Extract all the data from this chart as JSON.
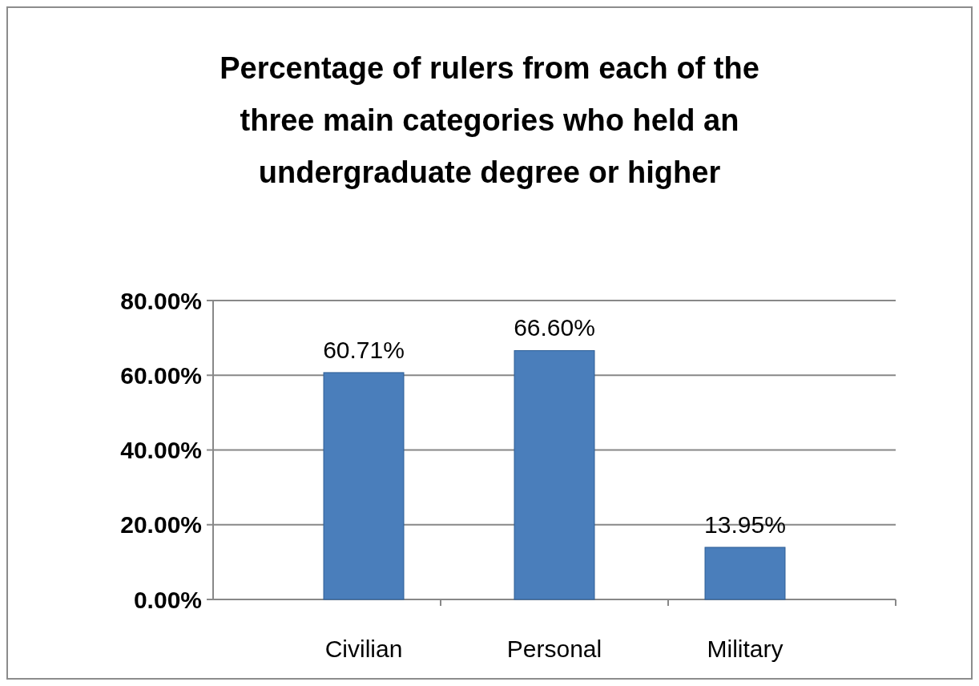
{
  "chart_data": {
    "type": "bar",
    "title": "Percentage of rulers from each of the three main categories who held an undergraduate degree or higher",
    "categories": [
      "Civilian",
      "Personal",
      "Military"
    ],
    "values": [
      60.71,
      66.6,
      13.95
    ],
    "value_labels": [
      "60.71%",
      "66.60%",
      "13.95%"
    ],
    "color": "#4a7ebb",
    "ylim": [
      0,
      80
    ],
    "yticks": [
      {
        "value": 0,
        "label": "0.00%"
      },
      {
        "value": 20,
        "label": "20.00%"
      },
      {
        "value": 40,
        "label": "40.00%"
      },
      {
        "value": 60,
        "label": "60.00%"
      },
      {
        "value": 80,
        "label": "80.00%"
      }
    ],
    "grid": "y"
  }
}
